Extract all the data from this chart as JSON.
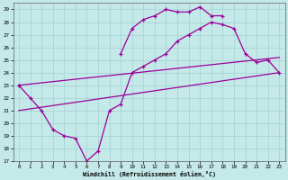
{
  "xlabel": "Windchill (Refroidissement éolien,°C)",
  "background_color": "#c5e8e8",
  "grid_color": "#a8d5d5",
  "line_color": "#990099",
  "xlim": [
    -0.5,
    23.5
  ],
  "ylim": [
    17,
    29.5
  ],
  "yticks": [
    17,
    18,
    19,
    20,
    21,
    22,
    23,
    24,
    25,
    26,
    27,
    28,
    29
  ],
  "xticks": [
    0,
    1,
    2,
    3,
    4,
    5,
    6,
    7,
    8,
    9,
    10,
    11,
    12,
    13,
    14,
    15,
    16,
    17,
    18,
    19,
    20,
    21,
    22,
    23
  ],
  "series": [
    {
      "x": [
        0,
        1,
        2,
        3,
        4,
        5,
        6,
        7,
        8,
        9,
        10,
        11,
        12,
        13,
        14,
        15,
        16,
        17,
        18,
        19,
        20,
        21,
        22,
        23
      ],
      "y": [
        23.0,
        22.0,
        21.0,
        19.5,
        19.0,
        18.8,
        17.0,
        17.8,
        21.0,
        21.5,
        24.0,
        24.5,
        25.0,
        25.5,
        26.5,
        27.0,
        27.5,
        28.0,
        27.8,
        27.5,
        25.5,
        24.8,
        25.0,
        24.0
      ],
      "marker": true
    },
    {
      "x": [
        0,
        1,
        2,
        3,
        4,
        5,
        6,
        7,
        8,
        9,
        10,
        11,
        12,
        13,
        14,
        15,
        16,
        17,
        18,
        19,
        20,
        21,
        22,
        23
      ],
      "y": [
        23.0,
        null,
        null,
        null,
        null,
        null,
        null,
        null,
        null,
        25.5,
        27.5,
        28.2,
        28.5,
        29.0,
        28.8,
        28.8,
        29.2,
        28.5,
        28.5,
        null,
        null,
        null,
        null,
        null
      ],
      "marker": true
    },
    {
      "x": [
        0,
        23
      ],
      "y": [
        21.0,
        24.0
      ],
      "marker": false
    },
    {
      "x": [
        0,
        23
      ],
      "y": [
        23.0,
        25.2
      ],
      "marker": false
    }
  ]
}
